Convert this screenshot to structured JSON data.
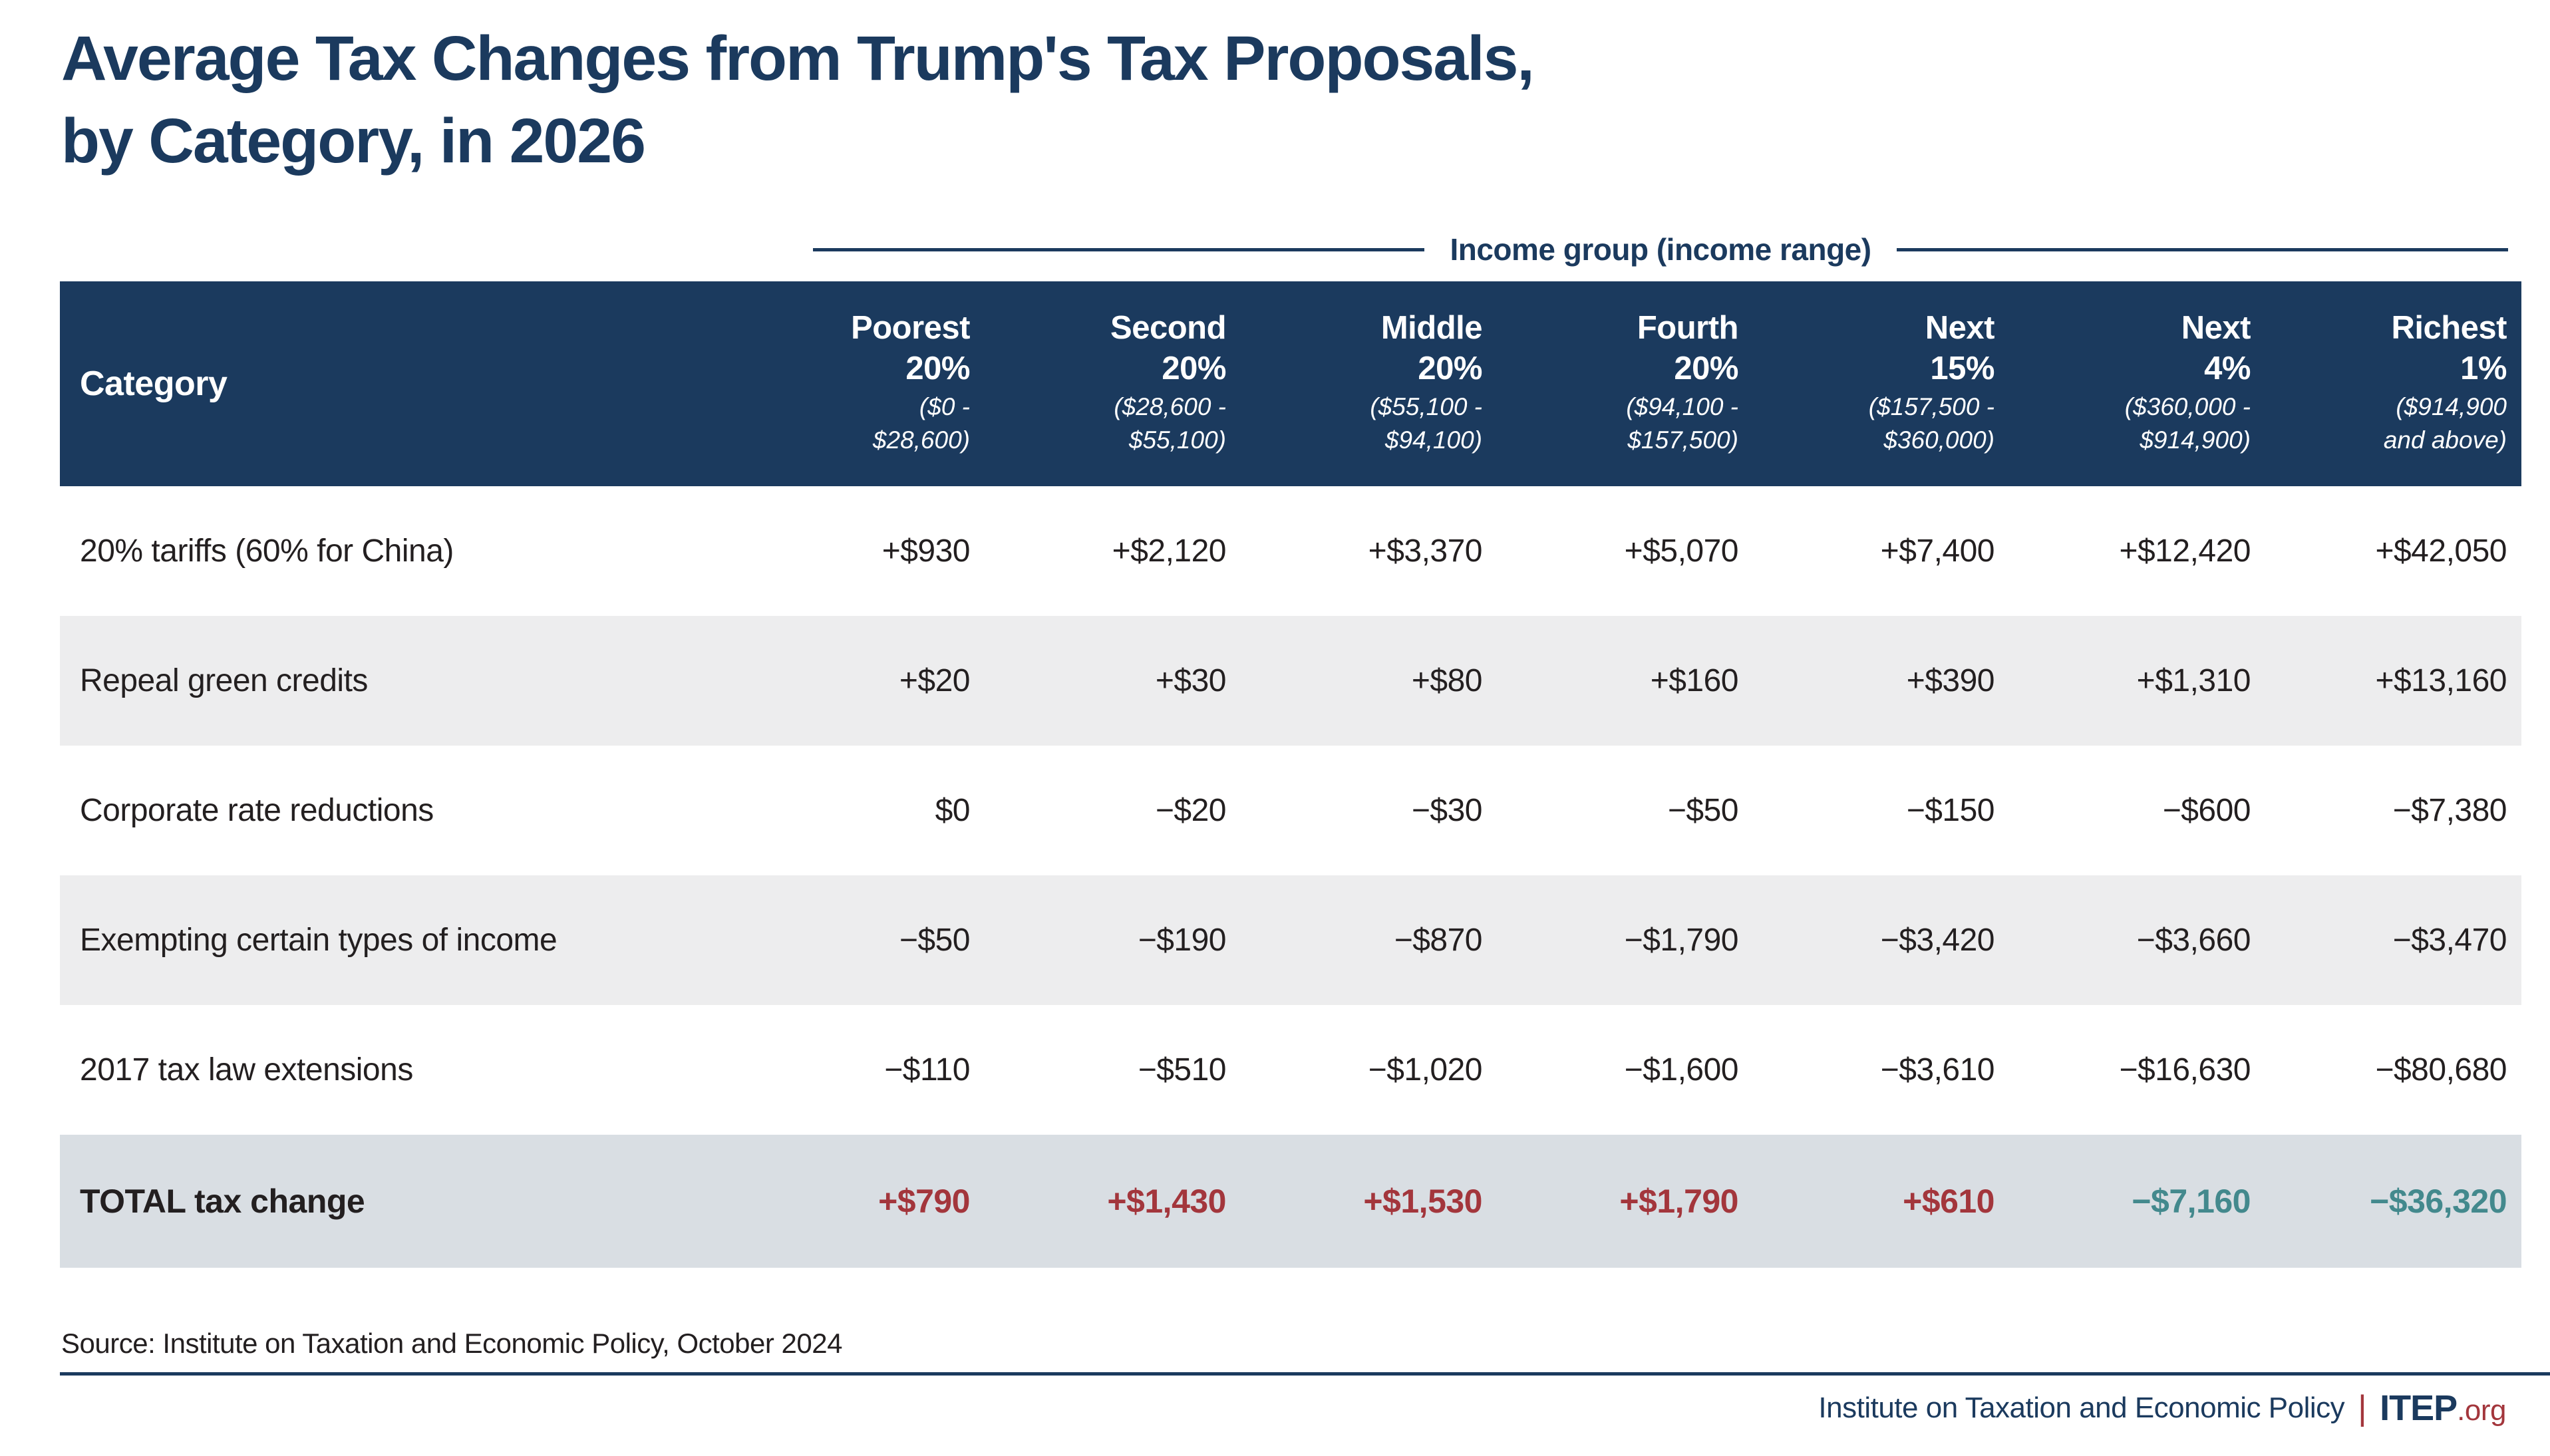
{
  "chart_data": {
    "type": "table",
    "title_lines": [
      "Average Tax Changes from Trump's Tax Proposals,",
      "by Category, in 2026"
    ],
    "column_group_label": "Income group (income range)",
    "category_header": "Category",
    "columns": [
      {
        "group": "Poorest",
        "share": "20%",
        "range_line1": "($0 -",
        "range_line2": "$28,600)"
      },
      {
        "group": "Second",
        "share": "20%",
        "range_line1": "($28,600 -",
        "range_line2": "$55,100)"
      },
      {
        "group": "Middle",
        "share": "20%",
        "range_line1": "($55,100 -",
        "range_line2": "$94,100)"
      },
      {
        "group": "Fourth",
        "share": "20%",
        "range_line1": "($94,100 -",
        "range_line2": "$157,500)"
      },
      {
        "group": "Next",
        "share": "15%",
        "range_line1": "($157,500 -",
        "range_line2": "$360,000)"
      },
      {
        "group": "Next",
        "share": "4%",
        "range_line1": "($360,000 -",
        "range_line2": "$914,900)"
      },
      {
        "group": "Richest",
        "share": "1%",
        "range_line1": "($914,900",
        "range_line2": "and above)"
      }
    ],
    "rows": [
      {
        "category": "20% tariffs (60% for China)",
        "values": [
          "+$930",
          "+$2,120",
          "+$3,370",
          "+$5,070",
          "+$7,400",
          "+$12,420",
          "+$42,050"
        ]
      },
      {
        "category": "Repeal green credits",
        "values": [
          "+$20",
          "+$30",
          "+$80",
          "+$160",
          "+$390",
          "+$1,310",
          "+$13,160"
        ]
      },
      {
        "category": "Corporate rate reductions",
        "values": [
          "$0",
          "−$20",
          "−$30",
          "−$50",
          "−$150",
          "−$600",
          "−$7,380"
        ]
      },
      {
        "category": "Exempting certain types of income",
        "values": [
          "−$50",
          "−$190",
          "−$870",
          "−$1,790",
          "−$3,420",
          "−$3,660",
          "−$3,470"
        ]
      },
      {
        "category": "2017 tax law extensions",
        "values": [
          "−$110",
          "−$510",
          "−$1,020",
          "−$1,600",
          "−$3,610",
          "−$16,630",
          "−$80,680"
        ]
      }
    ],
    "total_row": {
      "category": "TOTAL tax change",
      "values": [
        "+$790",
        "+$1,430",
        "+$1,530",
        "+$1,790",
        "+$610",
        "−$7,160",
        "−$36,320"
      ],
      "value_tones": [
        "increase",
        "increase",
        "increase",
        "increase",
        "increase",
        "decrease",
        "decrease"
      ]
    },
    "source": "Source: Institute on Taxation and Economic Policy, October 2024"
  },
  "footer": {
    "org": "Institute on Taxation and Economic Policy",
    "divider": "|",
    "brand": "ITEP",
    "brand_suffix": ".org"
  },
  "colors": {
    "navy": "#1b3a5e",
    "row_alt": "#ededee",
    "total_row_bg": "#d9dee3",
    "increase_red": "#a3363c",
    "decrease_teal": "#43898d",
    "text": "#231f20",
    "brand_red": "#a3363c"
  }
}
